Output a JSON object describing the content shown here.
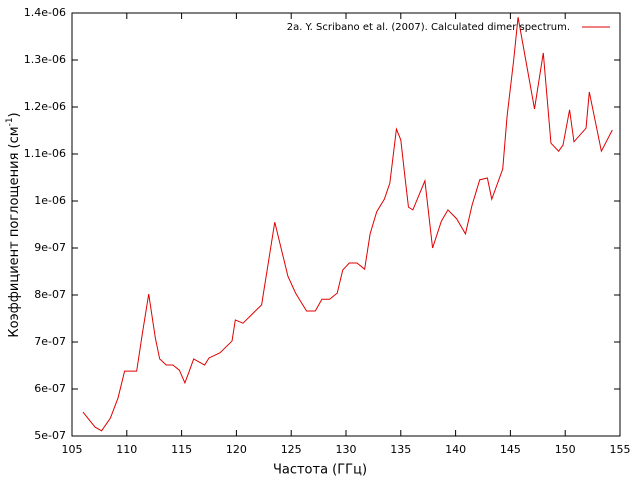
{
  "chart_data": {
    "type": "line",
    "xlabel": "Частота (ГГц)",
    "ylabel": [
      "Коэффициент поглощения (см",
      "-1",
      ")"
    ],
    "xlim": [
      105,
      155
    ],
    "xticks": [
      105,
      110,
      115,
      120,
      125,
      130,
      135,
      140,
      145,
      150,
      155
    ],
    "ylim": [
      5e-07,
      1.4e-06
    ],
    "yticks": [
      {
        "value": 5e-07,
        "label": "5e-07"
      },
      {
        "value": 6e-07,
        "label": "6e-07"
      },
      {
        "value": 7e-07,
        "label": "7e-07"
      },
      {
        "value": 8e-07,
        "label": "8e-07"
      },
      {
        "value": 9e-07,
        "label": "9e-07"
      },
      {
        "value": 1e-06,
        "label": "1e-06"
      },
      {
        "value": 1.1e-06,
        "label": "1.1e-06"
      },
      {
        "value": 1.2e-06,
        "label": "1.2e-06"
      },
      {
        "value": 1.3e-06,
        "label": "1.3e-06"
      },
      {
        "value": 1.4e-06,
        "label": "1.4e-06"
      }
    ],
    "grid": false,
    "legend": "top-right",
    "x": [
      106.0,
      107.1,
      107.7,
      108.5,
      109.2,
      109.8,
      110.9,
      111.4,
      112.0,
      112.6,
      113.0,
      113.6,
      114.2,
      114.8,
      115.3,
      115.7,
      116.1,
      117.1,
      117.5,
      118.5,
      119.6,
      119.9,
      120.6,
      122.3,
      123.5,
      124.7,
      125.4,
      126.4,
      127.2,
      127.8,
      128.5,
      129.2,
      129.7,
      130.3,
      131.0,
      131.7,
      132.2,
      132.8,
      133.5,
      134.0,
      134.6,
      135.0,
      135.4,
      135.7,
      136.1,
      137.2,
      137.9,
      138.7,
      139.3,
      140.1,
      140.9,
      141.5,
      142.2,
      142.9,
      143.3,
      144.3,
      144.7,
      145.3,
      145.7,
      147.2,
      148.0,
      148.7,
      149.4,
      149.8,
      150.4,
      150.8,
      151.9,
      152.2,
      153.3,
      154.3
    ],
    "series": [
      {
        "name": "2a. Y. Scribano et al. (2007). Calculated dimer spectrum.",
        "color": "#e00000",
        "values": [
          5.51e-07,
          5.19e-07,
          5.11e-07,
          5.38e-07,
          5.81e-07,
          6.38e-07,
          6.38e-07,
          7.15e-07,
          8.02e-07,
          7.09e-07,
          6.64e-07,
          6.51e-07,
          6.51e-07,
          6.4e-07,
          6.13e-07,
          6.38e-07,
          6.64e-07,
          6.51e-07,
          6.66e-07,
          6.77e-07,
          7.02e-07,
          7.47e-07,
          7.4e-07,
          7.79e-07,
          9.55e-07,
          8.4e-07,
          8.04e-07,
          7.66e-07,
          7.66e-07,
          7.91e-07,
          7.91e-07,
          8.04e-07,
          8.53e-07,
          8.68e-07,
          8.68e-07,
          8.55e-07,
          9.3e-07,
          9.77e-07,
          1.004e-06,
          1.038e-06,
          1.153e-06,
          1.13e-06,
          1.047e-06,
          9.87e-07,
          9.81e-07,
          1.043e-06,
          9e-07,
          9.57e-07,
          9.81e-07,
          9.62e-07,
          9.3e-07,
          9.91e-07,
          1.045e-06,
          1.049e-06,
          1.004e-06,
          1.068e-06,
          1.181e-06,
          1.3e-06,
          1.391e-06,
          1.196e-06,
          1.315e-06,
          1.123e-06,
          1.106e-06,
          1.119e-06,
          1.194e-06,
          1.126e-06,
          1.155e-06,
          1.232e-06,
          1.106e-06,
          1.151e-06
        ]
      }
    ]
  }
}
